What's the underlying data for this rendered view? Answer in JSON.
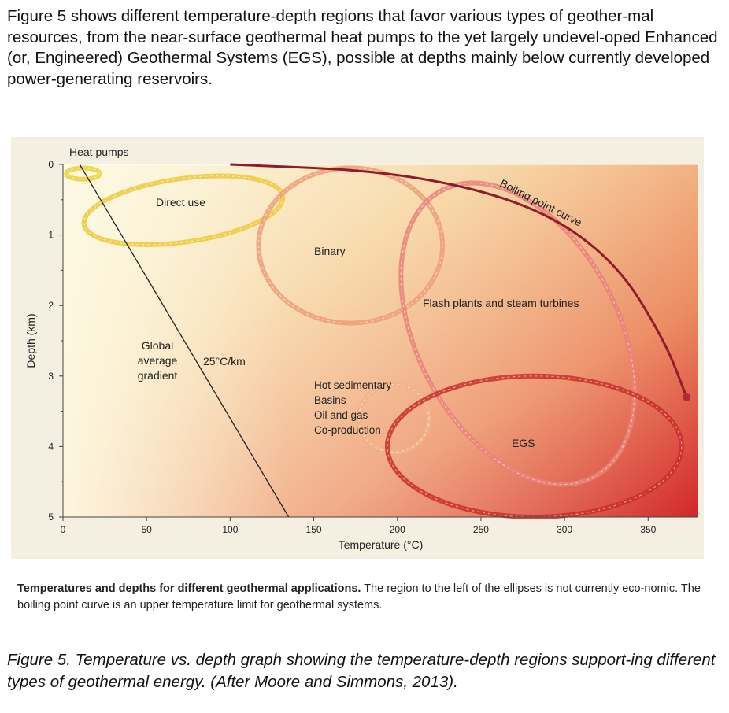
{
  "intro_text": "Figure 5 shows different temperature-depth regions that favor various types of geother-mal resources, from the near-surface geothermal heat pumps to the yet largely undevel-oped Enhanced (or, Engineered) Geothermal Systems (EGS), possible at depths mainly below currently developed power-generating reservoirs.",
  "chart_data": {
    "type": "diagram-chart",
    "xlabel": "Temperature (°C)",
    "ylabel": "Depth (km)",
    "xlim": [
      0,
      380
    ],
    "ylim": [
      5,
      0
    ],
    "x_ticks": [
      "0",
      "50",
      "100",
      "150",
      "200",
      "250",
      "300",
      "350"
    ],
    "y_ticks": [
      "0",
      "1",
      "2",
      "3",
      "4",
      "5"
    ],
    "regions": [
      {
        "name": "Heat pumps",
        "label": "Heat pumps",
        "cx": 12,
        "cy": 0.13,
        "rx": 10,
        "ry": 0.08,
        "color": "#e8d23a"
      },
      {
        "name": "Direct use",
        "label": "Direct use",
        "cx": 72,
        "cy": 0.65,
        "rx": 60,
        "ry": 0.45,
        "color": "#ecc93c"
      },
      {
        "name": "Binary",
        "label": "Binary",
        "cx": 172,
        "cy": 1.15,
        "rx": 55,
        "ry": 1.1,
        "color": "#ec9e78"
      },
      {
        "name": "Flash plants and steam turbines",
        "label": "Flash plants and steam turbines",
        "cx": 272,
        "cy": 2.4,
        "rx": 60,
        "ry": 2.3,
        "color": "#e9827a"
      },
      {
        "name": "Hot sedimentary Basins Oil and gas Co-production",
        "label": "Hot sedimentary|Basins|Oil and gas|Co-production",
        "cx": 198,
        "cy": 3.6,
        "rx": 21,
        "ry": 0.48,
        "color": "#f0b48a"
      },
      {
        "name": "EGS",
        "label": "EGS",
        "cx": 282,
        "cy": 4.0,
        "rx": 88,
        "ry": 1.0,
        "color": "#c8302a"
      }
    ],
    "lines": [
      {
        "name": "Global average gradient",
        "label": "Global|average|gradient",
        "annotation": "25°C/km",
        "points": [
          [
            10,
            0
          ],
          [
            135,
            5
          ]
        ]
      },
      {
        "name": "Boiling point curve",
        "label": "Boiling point curve",
        "points": [
          [
            100,
            0
          ],
          [
            200,
            0.1
          ],
          [
            280,
            0.55
          ],
          [
            330,
            1.35
          ],
          [
            360,
            2.5
          ],
          [
            373,
            3.3
          ]
        ]
      }
    ]
  },
  "caption_bold": "Temperatures and depths for different geothermal applications.",
  "caption_rest": " The region to the left of the ellipses is not currently eco-nomic. The boiling point curve is an upper temperature limit for geothermal systems.",
  "fig_caption": "Figure 5. Temperature vs. depth graph showing the temperature-depth regions support-ing different types of geothermal energy. (After Moore and Simmons, 2013)."
}
